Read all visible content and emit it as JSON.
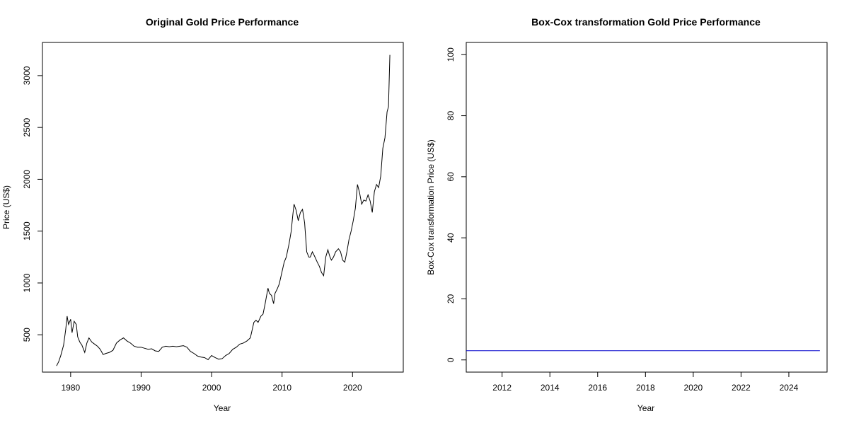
{
  "chart_data": [
    {
      "type": "line",
      "title": "Original Gold Price Performance",
      "xlabel": "Year",
      "ylabel": "Price (US$)",
      "xlim": [
        1976.0,
        2027.2
      ],
      "ylim": [
        140,
        3320
      ],
      "xticks": [
        1980,
        1990,
        2000,
        2010,
        2020
      ],
      "xtick_labels": [
        "1980",
        "1990",
        "2000",
        "2010",
        "2020"
      ],
      "yticks": [
        500,
        1000,
        1500,
        2000,
        2500,
        3000
      ],
      "ytick_labels": [
        "500",
        "1000",
        "1500",
        "2000",
        "2500",
        "3000"
      ],
      "grid": false,
      "series": [
        {
          "color": "#000000",
          "x": [
            1978.0,
            1978.3,
            1978.6,
            1979.0,
            1979.3,
            1979.5,
            1979.7,
            1980.0,
            1980.2,
            1980.5,
            1980.8,
            1981.0,
            1981.3,
            1981.6,
            1982.0,
            1982.3,
            1982.6,
            1983.0,
            1983.4,
            1983.8,
            1984.2,
            1984.6,
            1985.0,
            1985.5,
            1986.0,
            1986.5,
            1987.0,
            1987.5,
            1988.0,
            1988.5,
            1989.0,
            1989.5,
            1990.0,
            1990.5,
            1991.0,
            1991.5,
            1992.0,
            1992.5,
            1993.0,
            1993.5,
            1994.0,
            1994.5,
            1995.0,
            1995.5,
            1996.0,
            1996.5,
            1997.0,
            1997.5,
            1998.0,
            1998.5,
            1999.0,
            1999.5,
            2000.0,
            2000.5,
            2001.0,
            2001.5,
            2002.0,
            2002.5,
            2003.0,
            2003.5,
            2004.0,
            2004.5,
            2005.0,
            2005.5,
            2006.0,
            2006.3,
            2006.6,
            2007.0,
            2007.3,
            2007.6,
            2008.0,
            2008.2,
            2008.5,
            2008.8,
            2009.0,
            2009.3,
            2009.6,
            2010.0,
            2010.3,
            2010.6,
            2011.0,
            2011.3,
            2011.5,
            2011.7,
            2012.0,
            2012.3,
            2012.6,
            2012.9,
            2013.2,
            2013.5,
            2013.8,
            2014.0,
            2014.3,
            2014.6,
            2015.0,
            2015.3,
            2015.6,
            2015.9,
            2016.2,
            2016.5,
            2016.8,
            2017.0,
            2017.3,
            2017.6,
            2018.0,
            2018.3,
            2018.6,
            2018.9,
            2019.2,
            2019.5,
            2019.8,
            2020.1,
            2020.4,
            2020.7,
            2021.0,
            2021.3,
            2021.6,
            2021.9,
            2022.2,
            2022.5,
            2022.8,
            2023.1,
            2023.4,
            2023.7,
            2024.0,
            2024.3,
            2024.6,
            2024.9,
            2025.1,
            2025.3
          ],
          "y": [
            200,
            240,
            300,
            400,
            550,
            680,
            600,
            650,
            520,
            630,
            600,
            480,
            430,
            400,
            330,
            420,
            470,
            430,
            410,
            390,
            360,
            310,
            320,
            330,
            350,
            420,
            450,
            470,
            440,
            420,
            390,
            380,
            380,
            370,
            360,
            365,
            345,
            340,
            380,
            390,
            385,
            390,
            385,
            390,
            395,
            380,
            340,
            320,
            295,
            285,
            280,
            260,
            300,
            280,
            265,
            270,
            300,
            320,
            360,
            380,
            410,
            420,
            440,
            470,
            620,
            640,
            620,
            680,
            700,
            800,
            950,
            900,
            880,
            800,
            900,
            940,
            990,
            1110,
            1200,
            1250,
            1380,
            1500,
            1640,
            1760,
            1700,
            1600,
            1680,
            1710,
            1580,
            1300,
            1250,
            1250,
            1300,
            1260,
            1200,
            1160,
            1100,
            1070,
            1250,
            1320,
            1250,
            1220,
            1250,
            1300,
            1330,
            1300,
            1220,
            1200,
            1300,
            1420,
            1500,
            1600,
            1720,
            1950,
            1870,
            1760,
            1800,
            1790,
            1850,
            1790,
            1680,
            1880,
            1950,
            1920,
            2030,
            2300,
            2400,
            2650,
            2700,
            3200
          ]
        }
      ]
    },
    {
      "type": "line",
      "title": "Box-Cox transformation Gold Price Performance",
      "xlabel": "Year",
      "ylabel": "Box-Cox transformation Price (US$)",
      "xlim": [
        2010.5,
        2025.6
      ],
      "ylim": [
        -4,
        104
      ],
      "xticks": [
        2012,
        2014,
        2016,
        2018,
        2020,
        2022,
        2024
      ],
      "xtick_labels": [
        "2012",
        "2014",
        "2016",
        "2018",
        "2020",
        "2022",
        "2024"
      ],
      "yticks": [
        0,
        20,
        40,
        60,
        80,
        100
      ],
      "ytick_labels": [
        "0",
        "20",
        "40",
        "60",
        "80",
        "100"
      ],
      "grid": false,
      "series": [
        {
          "color": "#0000cc",
          "x": [
            2010.5,
            2025.3
          ],
          "y": [
            3,
            3
          ]
        }
      ]
    }
  ]
}
